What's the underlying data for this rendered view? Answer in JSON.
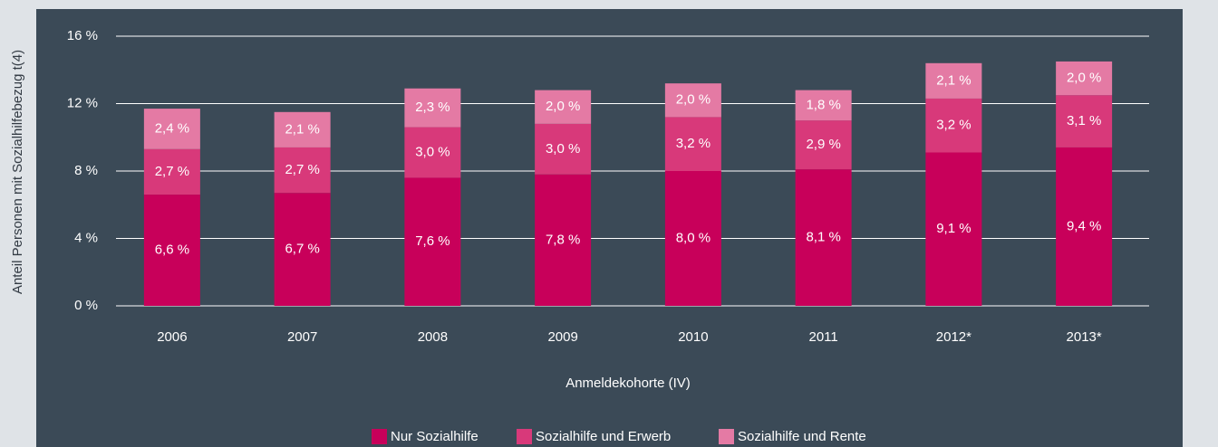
{
  "chart_data": {
    "type": "stacked_bar",
    "y_axis_label": "Anteil Personen mit Sozialhilfebezug t(4)",
    "x_axis_label": "Anmeldekohorte (IV)",
    "categories": [
      "2006",
      "2007",
      "2008",
      "2009",
      "2010",
      "2011",
      "2012*",
      "2013*"
    ],
    "series": [
      {
        "name": "Nur Sozialhilfe",
        "color": "#c8005a",
        "values": [
          6.6,
          6.7,
          7.6,
          7.8,
          8.0,
          8.1,
          9.1,
          9.4
        ],
        "value_labels": [
          "6,6 %",
          "6,7 %",
          "7,6 %",
          "7,8 %",
          "8,0 %",
          "8,1 %",
          "9,1 %",
          "9,4 %"
        ]
      },
      {
        "name": "Sozialhilfe und Erwerb",
        "color": "#d8397a",
        "values": [
          2.7,
          2.7,
          3.0,
          3.0,
          3.2,
          2.9,
          3.2,
          3.1
        ],
        "value_labels": [
          "2,7 %",
          "2,7 %",
          "3,0 %",
          "3,0 %",
          "3,2 %",
          "2,9 %",
          "3,2 %",
          "3,1 %"
        ]
      },
      {
        "name": "Sozialhilfe und Rente",
        "color": "#e47aa4",
        "values": [
          2.4,
          2.1,
          2.3,
          2.0,
          2.0,
          1.8,
          2.1,
          2.0
        ],
        "value_labels": [
          "2,4 %",
          "2,1 %",
          "2,3 %",
          "2,0 %",
          "2,0 %",
          "1,8 %",
          "2,1 %",
          "2,0 %"
        ]
      }
    ],
    "ylim": [
      0,
      16
    ],
    "yticks": [
      {
        "value": 0,
        "label": "0 %"
      },
      {
        "value": 4,
        "label": "4 %"
      },
      {
        "value": 8,
        "label": "8 %"
      },
      {
        "value": 12,
        "label": "12 %"
      },
      {
        "value": 16,
        "label": "16 %"
      }
    ],
    "grid": true,
    "legend": "bottom"
  }
}
